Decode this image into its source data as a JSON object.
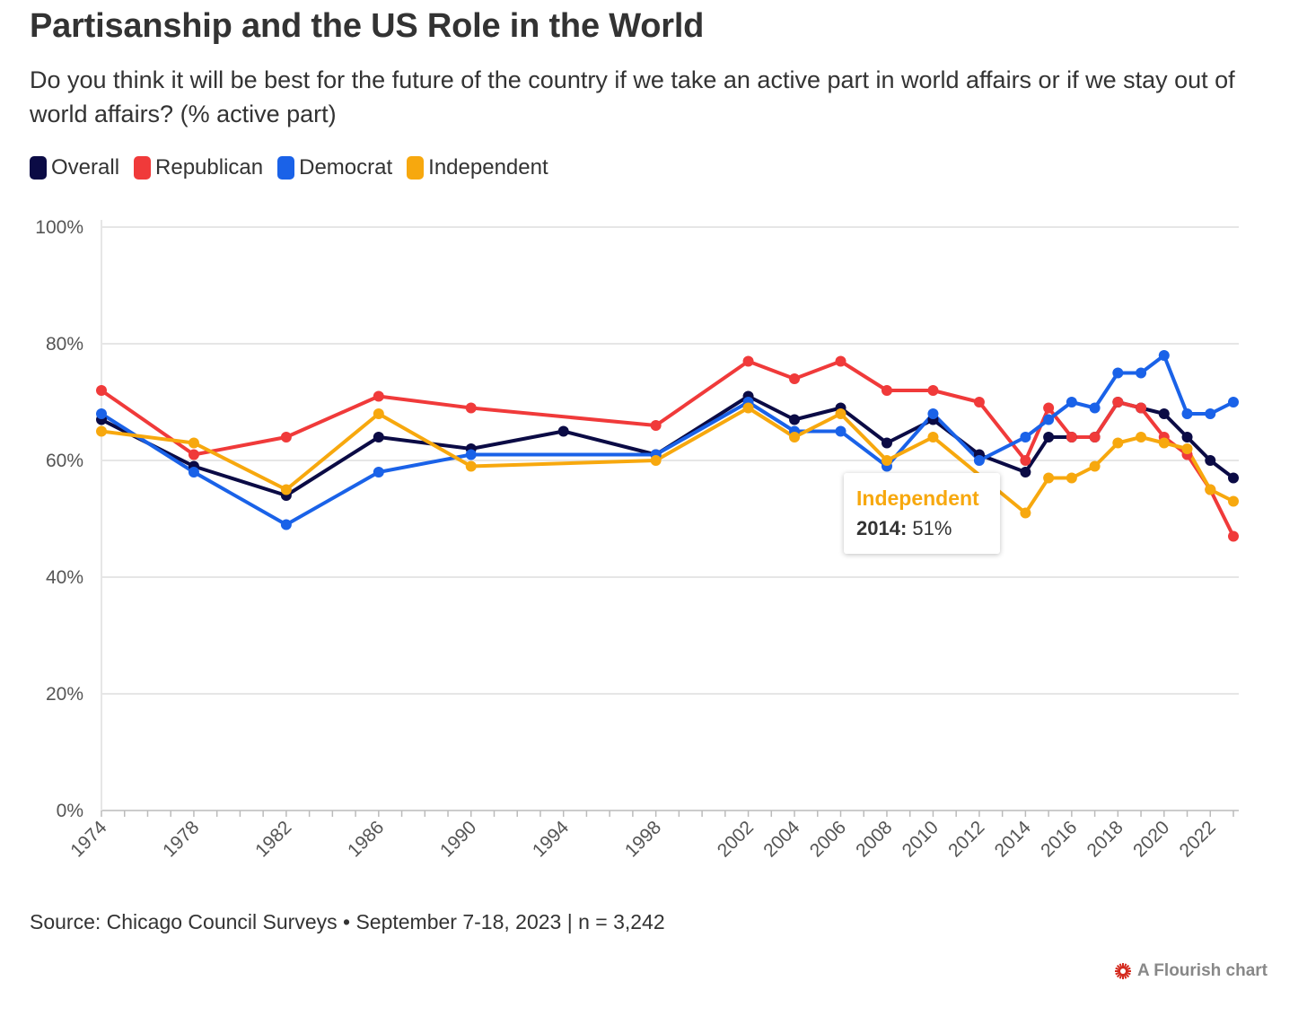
{
  "title": "Partisanship and the US Role in the World",
  "subtitle": "Do you think it will be best for the future of the country if we take an active part in world affairs or if we stay out of world affairs? (% active part)",
  "source": "Source: Chicago Council Surveys • September 7-18, 2023 | n = 3,242",
  "credit": "A Flourish chart",
  "tooltip": {
    "series": "Independent",
    "year": "2014:",
    "value": "51%"
  },
  "chart_data": {
    "type": "line",
    "y_ticks": [
      "0%",
      "20%",
      "40%",
      "60%",
      "80%",
      "100%"
    ],
    "ylim": [
      0,
      100
    ],
    "x_ticks": [
      "1974",
      "1978",
      "1982",
      "1986",
      "1990",
      "1994",
      "1998",
      "2002",
      "2004",
      "2006",
      "2008",
      "2010",
      "2012",
      "2014",
      "2016",
      "2018",
      "2020",
      "2022"
    ],
    "xlim": [
      1974,
      2023
    ],
    "grid": true,
    "legend_position": "top-left",
    "series": [
      {
        "name": "Overall",
        "color": "#0b0b45",
        "x": [
          1974,
          1978,
          1982,
          1986,
          1990,
          1994,
          1998,
          2002,
          2004,
          2006,
          2008,
          2010,
          2012,
          2014,
          2015,
          2016,
          2017,
          2018,
          2019,
          2020,
          2021,
          2022,
          2023
        ],
        "values": [
          67,
          59,
          54,
          64,
          62,
          65,
          61,
          71,
          67,
          69,
          63,
          67,
          61,
          58,
          64,
          64,
          64,
          70,
          69,
          68,
          64,
          60,
          57
        ]
      },
      {
        "name": "Republican",
        "color": "#f03a3a",
        "x": [
          1974,
          1978,
          1982,
          1986,
          1990,
          1998,
          2002,
          2004,
          2006,
          2008,
          2010,
          2012,
          2014,
          2015,
          2016,
          2017,
          2018,
          2019,
          2020,
          2021,
          2022,
          2023
        ],
        "values": [
          72,
          61,
          64,
          71,
          69,
          66,
          77,
          74,
          77,
          72,
          72,
          70,
          60,
          69,
          64,
          64,
          70,
          69,
          64,
          61,
          55,
          47
        ]
      },
      {
        "name": "Democrat",
        "color": "#1a62e8",
        "x": [
          1974,
          1978,
          1982,
          1986,
          1990,
          1998,
          2002,
          2004,
          2006,
          2008,
          2010,
          2012,
          2014,
          2015,
          2016,
          2017,
          2018,
          2019,
          2020,
          2021,
          2022,
          2023
        ],
        "values": [
          68,
          58,
          49,
          58,
          61,
          61,
          70,
          65,
          65,
          59,
          68,
          60,
          64,
          67,
          70,
          69,
          75,
          75,
          78,
          68,
          68,
          70
        ]
      },
      {
        "name": "Independent",
        "color": "#f7a80e",
        "x": [
          1974,
          1978,
          1982,
          1986,
          1990,
          1998,
          2002,
          2004,
          2006,
          2008,
          2010,
          2014,
          2015,
          2016,
          2017,
          2018,
          2019,
          2020,
          2021,
          2022,
          2023
        ],
        "values": [
          65,
          63,
          55,
          68,
          59,
          60,
          69,
          64,
          68,
          60,
          64,
          51,
          57,
          57,
          59,
          63,
          64,
          63,
          62,
          55,
          53
        ]
      }
    ]
  }
}
